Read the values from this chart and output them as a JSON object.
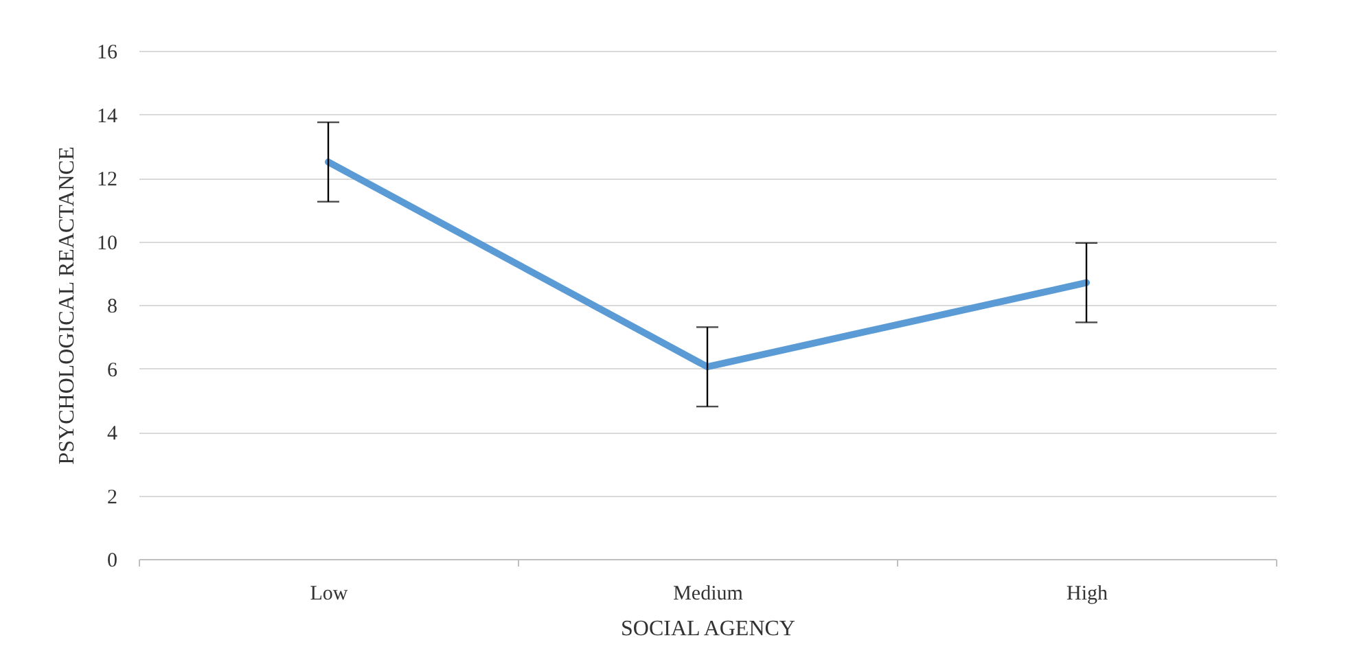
{
  "chart_data": {
    "type": "line",
    "xlabel": "SOCIAL AGENCY",
    "ylabel": "PSYCHOLOGICAL REACTANCE",
    "categories": [
      "Low",
      "Medium",
      "High"
    ],
    "series": [
      {
        "color": "#5b9bd5",
        "values": [
          12.5,
          6.05,
          8.7
        ],
        "errors": [
          1.25,
          1.25,
          1.25
        ]
      }
    ],
    "ylim": [
      0,
      16
    ],
    "yticks": [
      0,
      2,
      4,
      6,
      8,
      10,
      12,
      14,
      16
    ],
    "grid": "y",
    "marker": "none",
    "legend": false
  }
}
